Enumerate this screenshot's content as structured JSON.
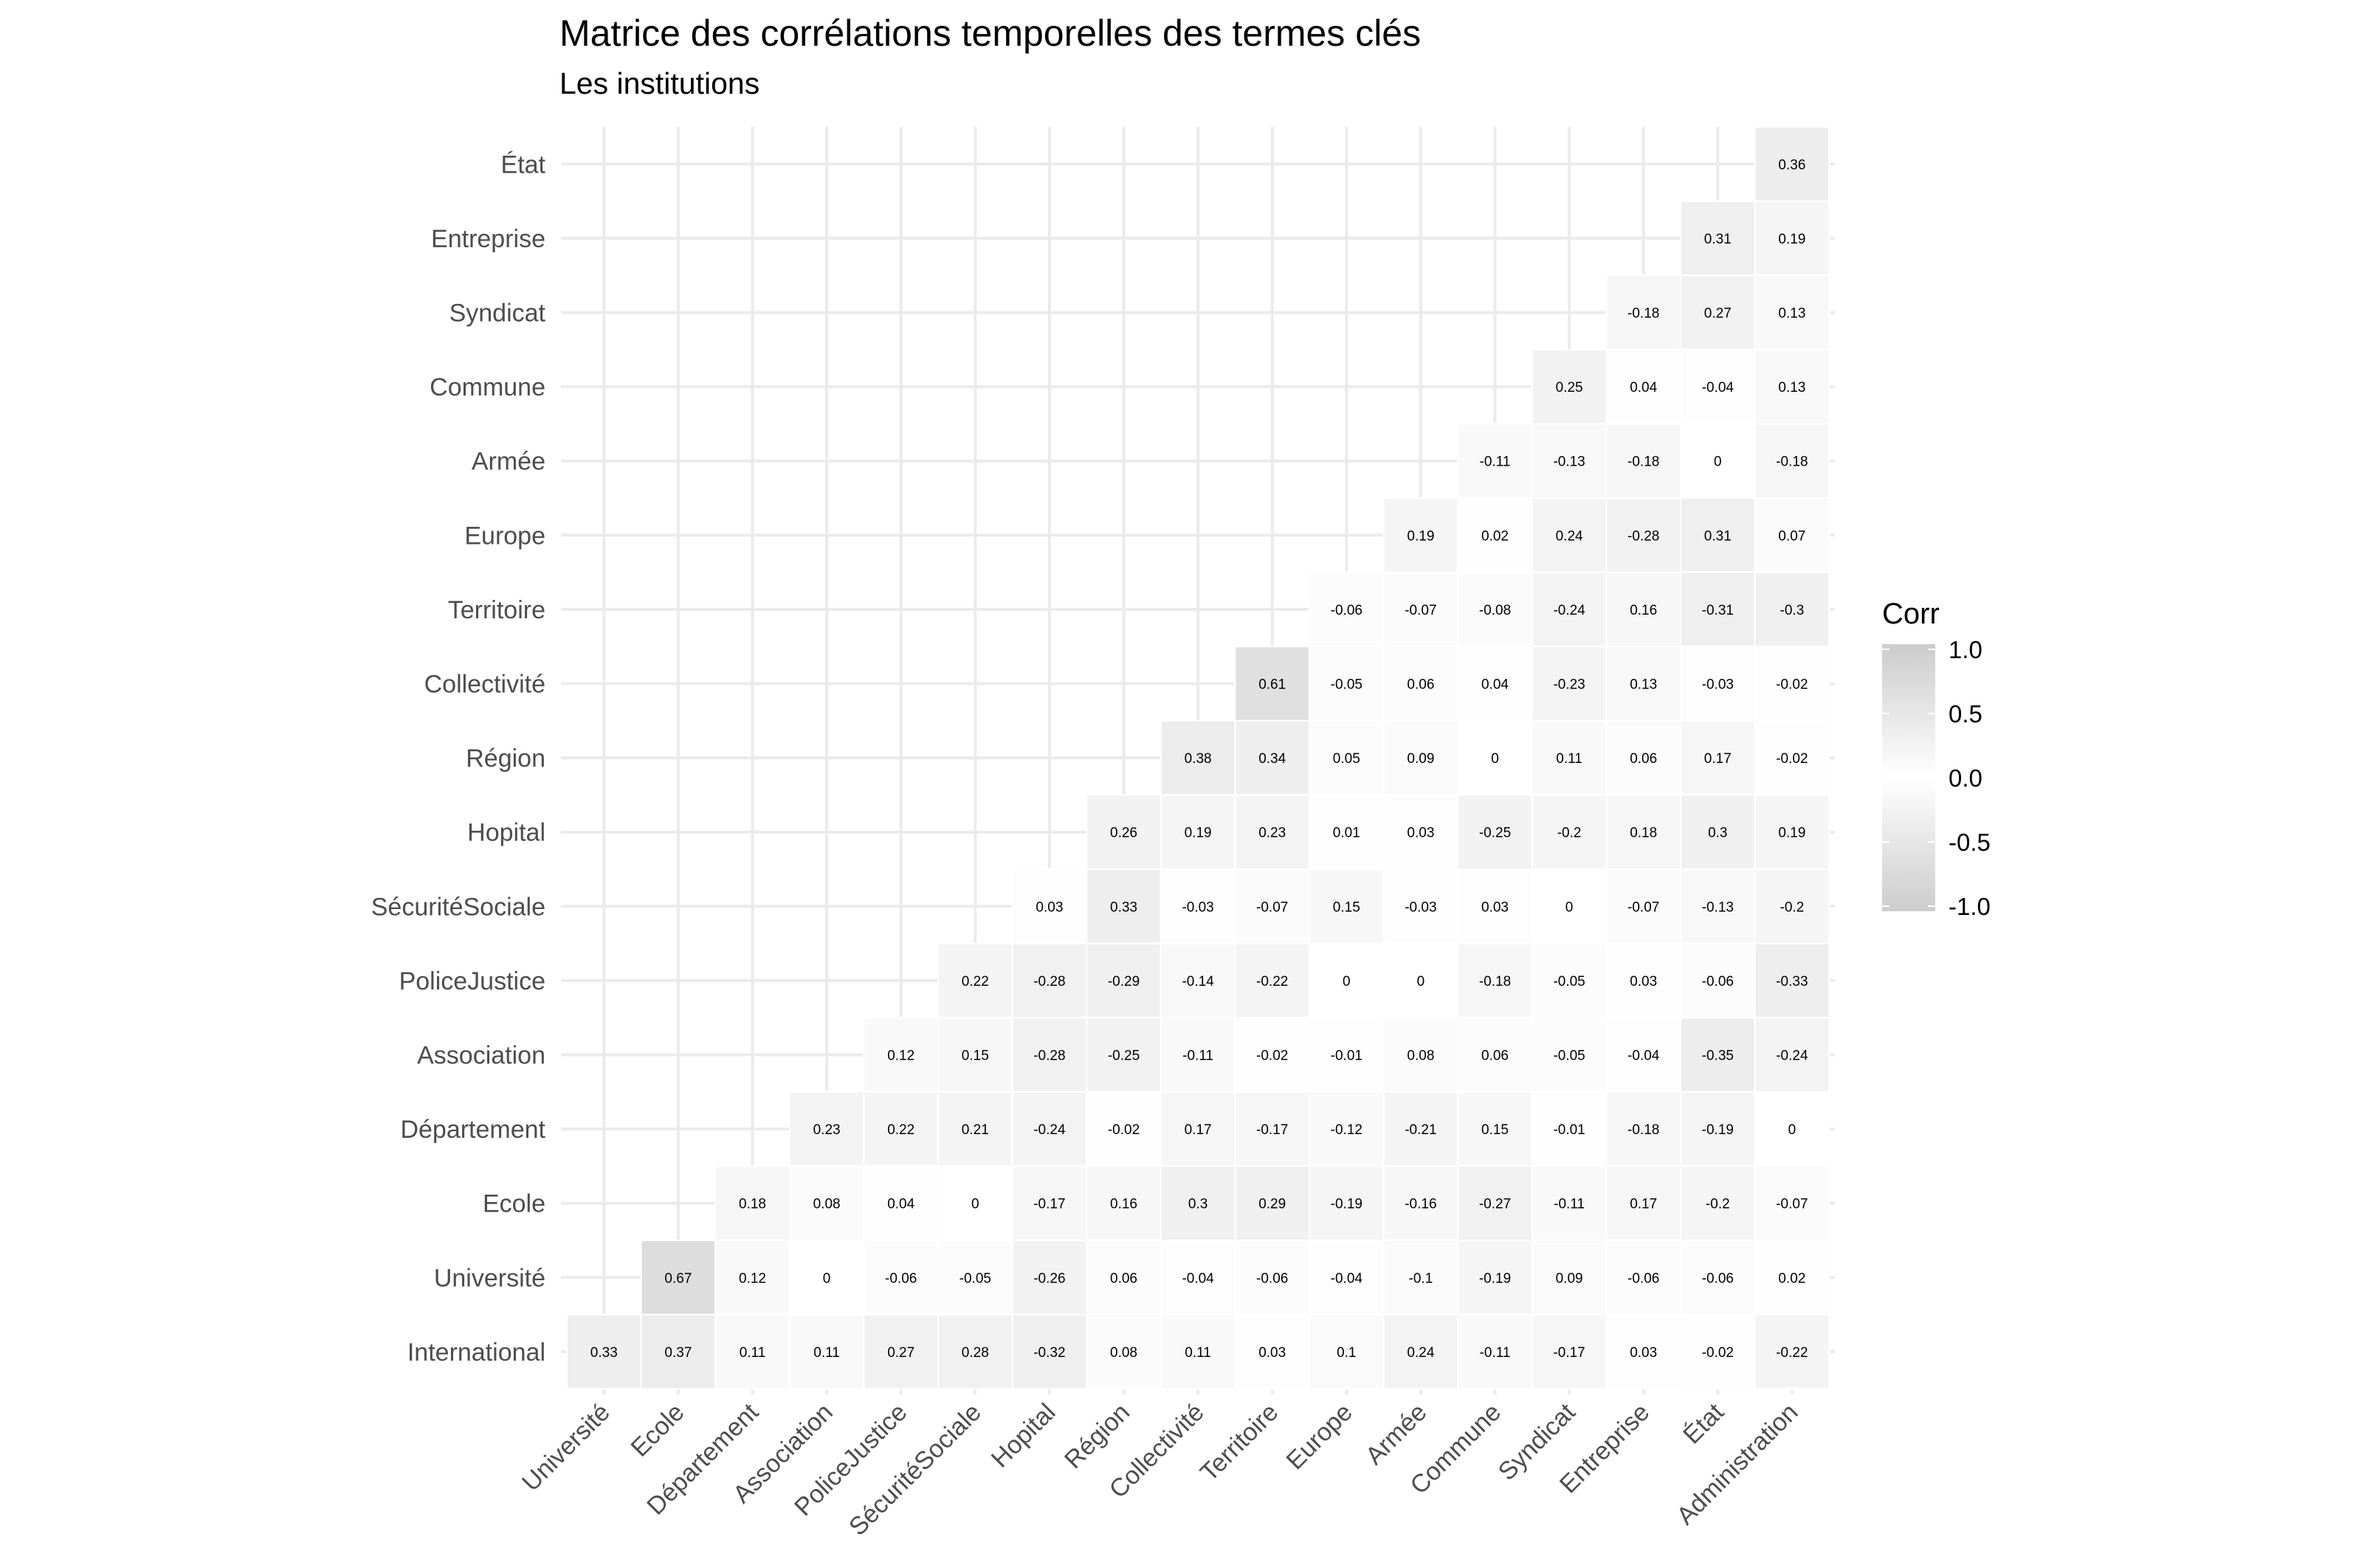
{
  "chart_data": {
    "type": "heatmap",
    "title": "Matrice des corrélations temporelles des termes clés",
    "subtitle": "Les institutions",
    "x_categories": [
      "Université",
      "Ecole",
      "Département",
      "Association",
      "PoliceJustice",
      "SécuritéSociale",
      "Hopital",
      "Région",
      "Collectivité",
      "Territoire",
      "Europe",
      "Armée",
      "Commune",
      "Syndicat",
      "Entreprise",
      "État",
      "Administration"
    ],
    "y_categories": [
      "État",
      "Entreprise",
      "Syndicat",
      "Commune",
      "Armée",
      "Europe",
      "Territoire",
      "Collectivité",
      "Région",
      "Hopital",
      "SécuritéSociale",
      "PoliceJustice",
      "Association",
      "Département",
      "Ecole",
      "Université",
      "International"
    ],
    "rows": [
      [
        null,
        null,
        null,
        null,
        null,
        null,
        null,
        null,
        null,
        null,
        null,
        null,
        null,
        null,
        null,
        null,
        0.36
      ],
      [
        null,
        null,
        null,
        null,
        null,
        null,
        null,
        null,
        null,
        null,
        null,
        null,
        null,
        null,
        null,
        0.31,
        0.19
      ],
      [
        null,
        null,
        null,
        null,
        null,
        null,
        null,
        null,
        null,
        null,
        null,
        null,
        null,
        null,
        -0.18,
        0.27,
        0.13
      ],
      [
        null,
        null,
        null,
        null,
        null,
        null,
        null,
        null,
        null,
        null,
        null,
        null,
        null,
        0.25,
        0.04,
        -0.04,
        0.13
      ],
      [
        null,
        null,
        null,
        null,
        null,
        null,
        null,
        null,
        null,
        null,
        null,
        null,
        -0.11,
        -0.13,
        -0.18,
        0,
        -0.18
      ],
      [
        null,
        null,
        null,
        null,
        null,
        null,
        null,
        null,
        null,
        null,
        null,
        0.19,
        0.02,
        0.24,
        -0.28,
        0.31,
        0.07
      ],
      [
        null,
        null,
        null,
        null,
        null,
        null,
        null,
        null,
        null,
        null,
        -0.06,
        -0.07,
        -0.08,
        -0.24,
        0.16,
        -0.31,
        -0.3
      ],
      [
        null,
        null,
        null,
        null,
        null,
        null,
        null,
        null,
        null,
        0.61,
        -0.05,
        0.06,
        0.04,
        -0.23,
        0.13,
        -0.03,
        -0.02
      ],
      [
        null,
        null,
        null,
        null,
        null,
        null,
        null,
        null,
        0.38,
        0.34,
        0.05,
        0.09,
        0,
        0.11,
        0.06,
        0.17,
        -0.02
      ],
      [
        null,
        null,
        null,
        null,
        null,
        null,
        null,
        0.26,
        0.19,
        0.23,
        0.01,
        0.03,
        -0.25,
        -0.2,
        0.18,
        0.3,
        0.19
      ],
      [
        null,
        null,
        null,
        null,
        null,
        null,
        0.03,
        0.33,
        -0.03,
        -0.07,
        0.15,
        -0.03,
        0.03,
        0,
        -0.07,
        -0.13,
        -0.2
      ],
      [
        null,
        null,
        null,
        null,
        null,
        0.22,
        -0.28,
        -0.29,
        -0.14,
        -0.22,
        0,
        0,
        -0.18,
        -0.05,
        0.03,
        -0.06,
        -0.33
      ],
      [
        null,
        null,
        null,
        null,
        0.12,
        0.15,
        -0.28,
        -0.25,
        -0.11,
        -0.02,
        -0.01,
        0.08,
        0.06,
        -0.05,
        -0.04,
        -0.35,
        -0.24
      ],
      [
        null,
        null,
        null,
        0.23,
        0.22,
        0.21,
        -0.24,
        -0.02,
        0.17,
        -0.17,
        -0.12,
        -0.21,
        0.15,
        -0.01,
        -0.18,
        -0.19,
        0
      ],
      [
        null,
        null,
        0.18,
        0.08,
        0.04,
        0,
        -0.17,
        0.16,
        0.3,
        0.29,
        -0.19,
        -0.16,
        -0.27,
        -0.11,
        0.17,
        -0.2,
        -0.07
      ],
      [
        null,
        0.67,
        0.12,
        0,
        -0.06,
        -0.05,
        -0.26,
        0.06,
        -0.04,
        -0.06,
        -0.04,
        -0.1,
        -0.19,
        0.09,
        -0.06,
        -0.06,
        0.02
      ],
      [
        0.33,
        0.37,
        0.11,
        0.11,
        0.27,
        0.28,
        -0.32,
        0.08,
        0.11,
        0.03,
        0.1,
        0.24,
        -0.11,
        -0.17,
        0.03,
        -0.02,
        -0.22
      ]
    ],
    "legend": {
      "title": "Corr",
      "ticks": [
        "1.0",
        "0.5",
        "0.0",
        "-0.5",
        "-1.0"
      ],
      "tick_values": [
        1,
        0.5,
        0,
        -0.5,
        -1
      ],
      "placement": "right"
    },
    "colors": {
      "zero": "#ffffff",
      "extreme": "#cccccc",
      "grid": "#ebebeb",
      "axis_text": "#4d4d4d"
    },
    "value_range": [
      -1,
      1
    ],
    "grid": true
  }
}
